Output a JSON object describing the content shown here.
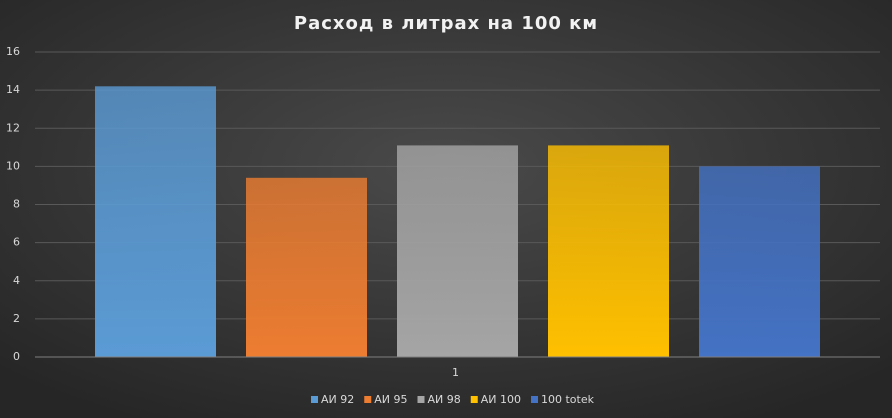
{
  "chart_data": {
    "type": "bar",
    "title": "Расход в литрах на 100 км",
    "categories": [
      "1"
    ],
    "series": [
      {
        "name": "АИ 92",
        "color": "#5b9bd5",
        "values": [
          14.2
        ]
      },
      {
        "name": "АИ 95",
        "color": "#ed7d31",
        "values": [
          9.4
        ]
      },
      {
        "name": "АИ 98",
        "color": "#a5a5a5",
        "values": [
          11.1
        ]
      },
      {
        "name": "АИ 100",
        "color": "#ffc000",
        "values": [
          11.1
        ]
      },
      {
        "name": "100 totek",
        "color": "#4472c4",
        "values": [
          10.0
        ]
      }
    ],
    "ylim": [
      0,
      16
    ],
    "yticks": [
      0,
      2,
      4,
      6,
      8,
      10,
      12,
      14,
      16
    ],
    "grid": true,
    "legend": "bottom"
  }
}
